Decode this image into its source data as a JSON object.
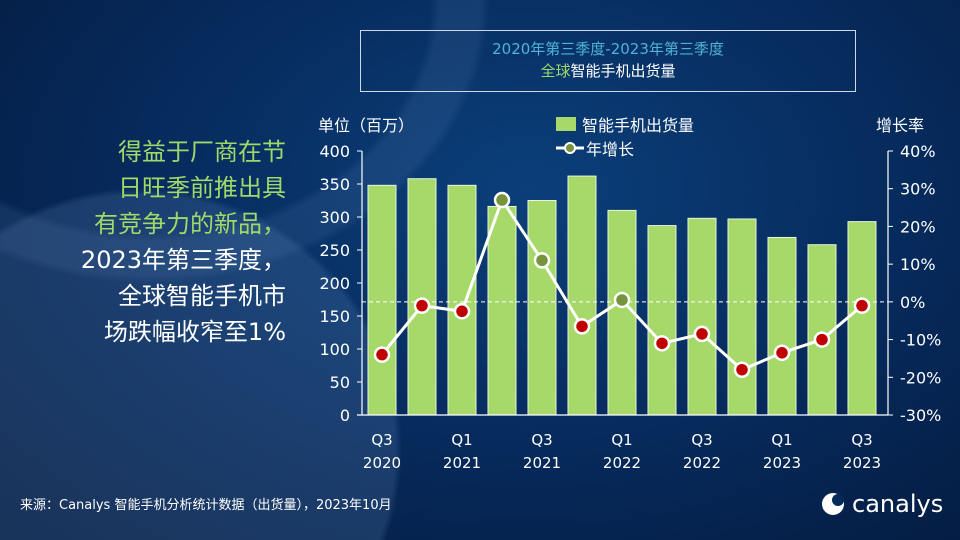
{
  "title": {
    "line1": "2020年第三季度-2023年第三季度",
    "line2_prefix": "全球",
    "line2_rest": "智能手机出货量"
  },
  "headline": {
    "green_lines": [
      "得益于厂商在节",
      "日旺季前推出具",
      "有竞争力的新品，"
    ],
    "white_lines": [
      "2023年第三季度，",
      "全球智能手机市",
      "场跌幅收窄至1%"
    ]
  },
  "source": "来源：Canalys 智能手机分析统计数据（出货量），2023年10月",
  "logo": "canalys",
  "colors": {
    "bar": "#a6d86a",
    "line": "#ffffff",
    "negative_point": "#c00000",
    "positive_point": "#77933c"
  },
  "chart_data": {
    "type": "bar+line",
    "categories": [
      "Q3 2020",
      "Q4 2020",
      "Q1 2021",
      "Q2 2021",
      "Q3 2021",
      "Q4 2021",
      "Q1 2022",
      "Q2 2022",
      "Q3 2022",
      "Q4 2022",
      "Q1 2023",
      "Q2 2023",
      "Q3 2023"
    ],
    "x_tick_labels": [
      [
        "Q3",
        "2020"
      ],
      [
        "Q1",
        "2021"
      ],
      [
        "Q3",
        "2021"
      ],
      [
        "Q1",
        "2022"
      ],
      [
        "Q3",
        "2022"
      ],
      [
        "Q1",
        "2023"
      ],
      [
        "Q3",
        "2023"
      ]
    ],
    "series": [
      {
        "name": "智能手机出货量",
        "type": "bar",
        "axis": "left",
        "values": [
          348,
          358,
          348,
          316,
          325,
          362,
          310,
          287,
          298,
          297,
          269,
          258,
          293
        ]
      },
      {
        "name": "年增长",
        "type": "line",
        "axis": "right",
        "values": [
          -14,
          -1,
          -2.5,
          27,
          11,
          -6.5,
          0.5,
          -11,
          -8.5,
          -18,
          -13.5,
          -10,
          -1
        ]
      }
    ],
    "left_axis": {
      "label": "单位（百万）",
      "range": [
        0,
        400
      ],
      "ticks": [
        "0",
        "50",
        "100",
        "150",
        "200",
        "250",
        "300",
        "350",
        "400"
      ]
    },
    "right_axis": {
      "label": "增长率",
      "range": [
        -30,
        40
      ],
      "ticks": [
        "-30%",
        "-20%",
        "-10%",
        "0%",
        "10%",
        "20%",
        "30%",
        "40%"
      ]
    },
    "zero_reference_line": true,
    "legend": "top-center"
  }
}
